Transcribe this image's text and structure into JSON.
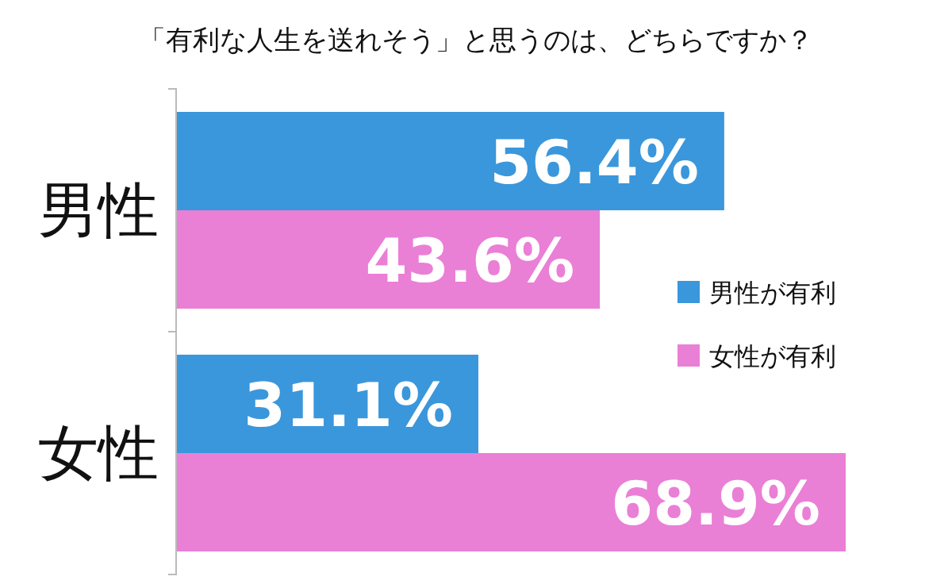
{
  "chart_data": {
    "type": "bar",
    "orientation": "horizontal",
    "title": "「有利な人生を送れそう」と思うのは、どちらですか？",
    "categories": [
      "男性",
      "女性"
    ],
    "legend": "right",
    "series": [
      {
        "name": "男性が有利",
        "color": "#3a97db",
        "values": [
          56.4,
          31.1
        ],
        "value_labels": [
          "56.4%",
          "31.1%"
        ]
      },
      {
        "name": "女性が有利",
        "color": "#ea7fd6",
        "values": [
          43.6,
          68.9
        ],
        "value_labels": [
          "43.6%",
          "68.9%"
        ]
      }
    ]
  }
}
